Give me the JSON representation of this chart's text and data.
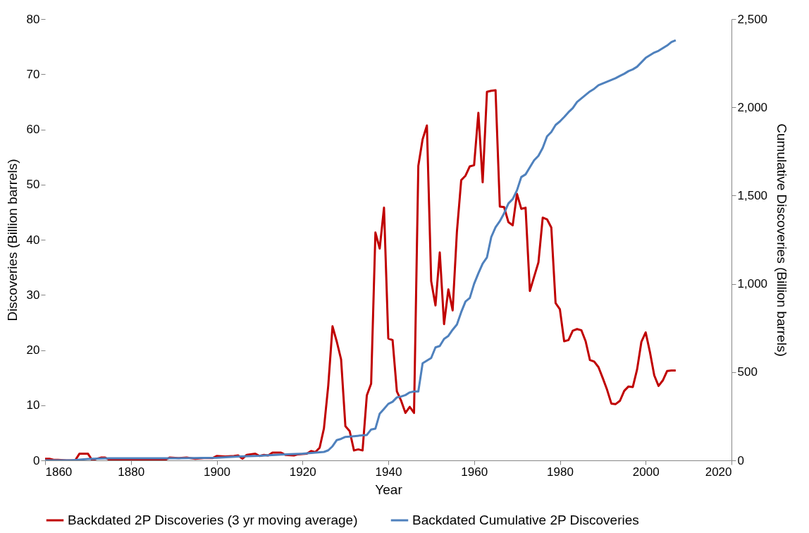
{
  "chart_data": {
    "type": "line",
    "xlabel": "Year",
    "ylabel": "Discoveries (Billion barrels)",
    "y2label": "Cumulative Discoveries (Billion barrels)",
    "xlim": [
      1860,
      2020
    ],
    "xticks": [
      1860,
      1880,
      1900,
      1920,
      1940,
      1960,
      1980,
      2000,
      2020
    ],
    "ylim": [
      0,
      80
    ],
    "yticks": [
      0,
      10,
      20,
      30,
      40,
      50,
      60,
      70,
      80
    ],
    "y2lim": [
      0,
      2500
    ],
    "y2ticks": [
      0,
      500,
      {
        "value": 1000,
        "label": "1,000"
      },
      {
        "value": 1500,
        "label": "1,500"
      },
      {
        "value": 2000,
        "label": "2,000"
      },
      {
        "value": 2500,
        "label": "2,500"
      }
    ],
    "grid": false,
    "legend": "bottom",
    "marker": "none",
    "line_style": "solid",
    "series": [
      {
        "name": "Backdated 2P Discoveries (3 yr moving average)",
        "color": "#c00000",
        "x": [
          1860,
          1861,
          1862,
          1863,
          1865,
          1867,
          1868,
          1870,
          1871,
          1872,
          1873,
          1874,
          1875,
          1888,
          1889,
          1891,
          1893,
          1895,
          1897,
          1899,
          1900,
          1902,
          1904,
          1905,
          1906,
          1907,
          1909,
          1910,
          1911,
          1912,
          1913,
          1915,
          1916,
          1918,
          1919,
          1921,
          1922,
          1923,
          1924,
          1925,
          1926,
          1927,
          1928,
          1929,
          1930,
          1931,
          1932,
          1933,
          1934,
          1935,
          1936,
          1937,
          1938,
          1939,
          1940,
          1941,
          1942,
          1943,
          1944,
          1945,
          1946,
          1947,
          1948,
          1949,
          1950,
          1951,
          1952,
          1953,
          1954,
          1955,
          1956,
          1957,
          1958,
          1959,
          1960,
          1961,
          1962,
          1963,
          1964,
          1965,
          1966,
          1967,
          1968,
          1969,
          1970,
          1971,
          1972,
          1973,
          1974,
          1975,
          1976,
          1977,
          1978,
          1979,
          1980,
          1981,
          1982,
          1983,
          1984,
          1985,
          1986,
          1987,
          1988,
          1989,
          1990,
          1991,
          1992,
          1993,
          1994,
          1995,
          1996,
          1997,
          1998,
          1999,
          2000,
          2001,
          2002,
          2003,
          2004,
          2005,
          2006,
          2007
        ],
        "values": [
          0.3,
          0.3,
          0.1,
          0.1,
          0,
          0,
          1.2,
          1.2,
          0,
          0.3,
          0.5,
          0.5,
          0.1,
          0.1,
          0.5,
          0.4,
          0.5,
          0.3,
          0.4,
          0.4,
          0.8,
          0.7,
          0.8,
          0.9,
          0.3,
          1.0,
          1.2,
          0.8,
          1.0,
          0.9,
          1.4,
          1.4,
          1.0,
          0.9,
          1.1,
          1.2,
          1.7,
          1.5,
          2.3,
          5.8,
          13.5,
          24.3,
          21.5,
          18.3,
          6.2,
          5.3,
          1.8,
          2.0,
          1.8,
          11.8,
          13.9,
          41.3,
          38.4,
          45.8,
          22.1,
          21.8,
          12.5,
          10.8,
          8.6,
          9.7,
          8.6,
          53.4,
          58.2,
          60.7,
          32.5,
          28.1,
          37.7,
          24.7,
          31.0,
          27.2,
          41.5,
          50.8,
          51.6,
          53.3,
          53.5,
          63.0,
          50.4,
          66.8,
          67.0,
          67.1,
          46.0,
          45.9,
          43.2,
          42.6,
          48.3,
          45.6,
          45.8,
          30.7,
          33.3,
          35.9,
          44.0,
          43.7,
          42.2,
          28.5,
          27.4,
          21.6,
          21.8,
          23.5,
          23.8,
          23.6,
          21.6,
          18.2,
          17.9,
          16.9,
          14.9,
          12.8,
          10.3,
          10.2,
          10.8,
          12.6,
          13.4,
          13.3,
          16.5,
          21.5,
          23.2,
          19.6,
          15.4,
          13.5,
          14.5,
          16.2,
          16.3,
          16.3
        ]
      },
      {
        "name": "Backdated Cumulative 2P Discoveries",
        "color": "#4f81bd",
        "axis": "y2",
        "x": [
          1860,
          1866,
          1870,
          1875,
          1890,
          1900,
          1905,
          1910,
          1915,
          1920,
          1925,
          1926,
          1927,
          1928,
          1929,
          1930,
          1932,
          1934,
          1935,
          1936,
          1937,
          1938,
          1939,
          1940,
          1941,
          1942,
          1943,
          1944,
          1945,
          1946,
          1947,
          1948,
          1949,
          1950,
          1951,
          1952,
          1953,
          1954,
          1955,
          1956,
          1957,
          1958,
          1959,
          1960,
          1961,
          1962,
          1963,
          1964,
          1965,
          1966,
          1967,
          1968,
          1969,
          1970,
          1971,
          1972,
          1973,
          1974,
          1975,
          1976,
          1977,
          1978,
          1979,
          1980,
          1981,
          1982,
          1983,
          1984,
          1985,
          1986,
          1987,
          1988,
          1989,
          1990,
          1991,
          1992,
          1993,
          1994,
          1995,
          1996,
          1997,
          1998,
          1999,
          2000,
          2001,
          2002,
          2003,
          2004,
          2005,
          2006,
          2007
        ],
        "values": [
          0,
          0,
          8,
          12,
          12,
          15,
          22,
          26,
          33,
          38,
          48,
          57,
          80,
          115,
          122,
          133,
          137,
          142,
          144,
          175,
          180,
          265,
          292,
          320,
          332,
          357,
          362,
          370,
          385,
          390,
          390,
          550,
          565,
          580,
          640,
          648,
          688,
          705,
          740,
          770,
          840,
          900,
          920,
          1000,
          1060,
          1115,
          1150,
          1265,
          1320,
          1355,
          1400,
          1455,
          1480,
          1530,
          1605,
          1620,
          1660,
          1700,
          1725,
          1770,
          1835,
          1860,
          1900,
          1920,
          1945,
          1972,
          1995,
          2030,
          2050,
          2070,
          2090,
          2105,
          2125,
          2135,
          2145,
          2155,
          2165,
          2178,
          2190,
          2205,
          2215,
          2230,
          2255,
          2280,
          2295,
          2310,
          2320,
          2335,
          2350,
          2370,
          2380
        ]
      }
    ]
  }
}
